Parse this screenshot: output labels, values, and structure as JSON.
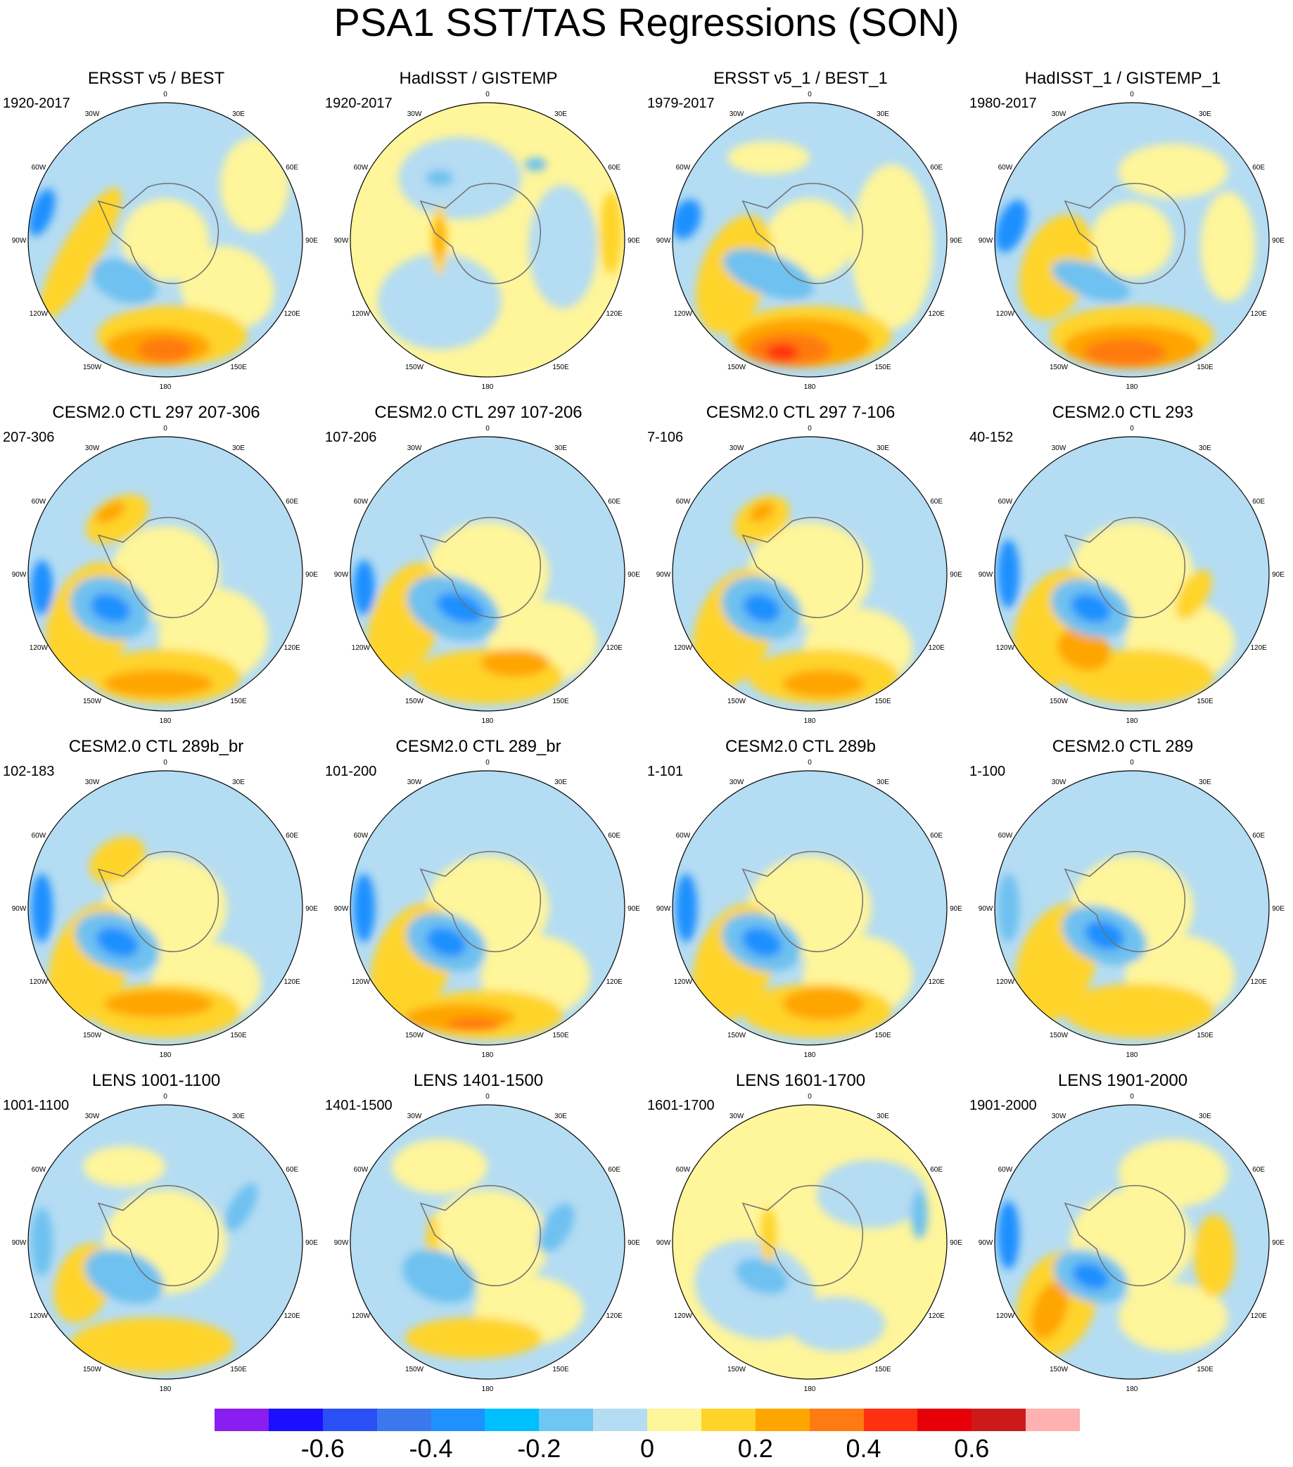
{
  "title": "PSA1 SST/TAS Regressions (SON)",
  "colors": {
    "blue_strong": "#1e90ff",
    "blue_mid": "#6ec1f0",
    "blue_light": "#b4dcf3",
    "yellow_light": "#fff59a",
    "yellow": "#ffd42a",
    "orange": "#ffa500",
    "orange_dark": "#ff7a10",
    "red": "#ff3010",
    "coast": "#707070"
  },
  "longitude_labels": [
    "0",
    "30E",
    "60E",
    "90E",
    "120E",
    "150E",
    "180",
    "150W",
    "120W",
    "90W",
    "60W",
    "30W"
  ],
  "panels": [
    {
      "title": "ERSST v5 / BEST",
      "period": "1920-2017",
      "base": "blue_light",
      "blobs": [
        [
          "yellow_light",
          0.0,
          0.0,
          0.32,
          0.3,
          0
        ],
        [
          "yellow_light",
          0.45,
          0.35,
          0.35,
          0.3,
          20
        ],
        [
          "yellow",
          -0.62,
          0.1,
          0.14,
          0.55,
          30
        ],
        [
          "yellow",
          0.05,
          0.7,
          0.55,
          0.22,
          0
        ],
        [
          "orange",
          -0.05,
          0.78,
          0.38,
          0.14,
          0
        ],
        [
          "orange_dark",
          0.0,
          0.8,
          0.2,
          0.09,
          0
        ],
        [
          "blue_mid",
          -0.3,
          0.3,
          0.25,
          0.15,
          20
        ],
        [
          "blue_strong",
          -0.9,
          -0.2,
          0.08,
          0.18,
          20
        ],
        [
          "yellow_light",
          0.65,
          -0.4,
          0.25,
          0.35,
          0
        ]
      ]
    },
    {
      "title": "HadISST / GISTEMP",
      "period": "1920-2017",
      "base": "yellow_light",
      "blobs": [
        [
          "blue_light",
          -0.35,
          0.45,
          0.45,
          0.35,
          0
        ],
        [
          "blue_light",
          -0.2,
          -0.45,
          0.45,
          0.3,
          0
        ],
        [
          "blue_light",
          0.55,
          0.05,
          0.25,
          0.45,
          0
        ],
        [
          "blue_mid",
          -0.35,
          -0.45,
          0.1,
          0.06,
          0
        ],
        [
          "blue_mid",
          0.35,
          -0.55,
          0.08,
          0.05,
          0
        ],
        [
          "yellow",
          0.9,
          -0.05,
          0.08,
          0.3,
          0
        ],
        [
          "yellow",
          -0.35,
          0.0,
          0.06,
          0.25,
          0
        ],
        [
          "orange",
          -0.35,
          0.0,
          0.03,
          0.15,
          0
        ]
      ]
    },
    {
      "title": "ERSST v5_1 / BEST_1",
      "period": "1979-2017",
      "base": "blue_light",
      "blobs": [
        [
          "yellow_light",
          0.0,
          0.0,
          0.32,
          0.3,
          0
        ],
        [
          "yellow_light",
          0.6,
          0.05,
          0.3,
          0.6,
          0
        ],
        [
          "yellow",
          -0.55,
          0.25,
          0.25,
          0.45,
          20
        ],
        [
          "yellow",
          0.0,
          0.7,
          0.6,
          0.22,
          0
        ],
        [
          "orange",
          -0.05,
          0.75,
          0.5,
          0.18,
          0
        ],
        [
          "orange_dark",
          -0.15,
          0.8,
          0.3,
          0.12,
          0
        ],
        [
          "red",
          -0.2,
          0.82,
          0.12,
          0.06,
          0
        ],
        [
          "blue_mid",
          -0.3,
          0.25,
          0.35,
          0.15,
          20
        ],
        [
          "blue_strong",
          -0.9,
          -0.15,
          0.1,
          0.15,
          20
        ],
        [
          "yellow_light",
          -0.3,
          -0.6,
          0.3,
          0.12,
          0
        ]
      ]
    },
    {
      "title": "HadISST_1 / GISTEMP_1",
      "period": "1980-2017",
      "base": "blue_light",
      "blobs": [
        [
          "yellow_light",
          0.0,
          0.0,
          0.3,
          0.28,
          0
        ],
        [
          "yellow_light",
          0.3,
          -0.5,
          0.4,
          0.2,
          0
        ],
        [
          "yellow_light",
          0.7,
          0.05,
          0.2,
          0.4,
          0
        ],
        [
          "yellow",
          -0.55,
          0.2,
          0.25,
          0.4,
          20
        ],
        [
          "yellow",
          0.0,
          0.7,
          0.6,
          0.22,
          0
        ],
        [
          "orange",
          0.0,
          0.78,
          0.5,
          0.16,
          0
        ],
        [
          "orange_dark",
          -0.05,
          0.82,
          0.3,
          0.1,
          0
        ],
        [
          "blue_mid",
          -0.3,
          0.3,
          0.3,
          0.12,
          20
        ],
        [
          "blue_strong",
          -0.88,
          -0.1,
          0.1,
          0.2,
          20
        ]
      ]
    },
    {
      "title": "CESM2.0 CTL 297 207-306",
      "period": "207-306",
      "base": "blue_light",
      "blobs": [
        [
          "yellow_light",
          0.0,
          0.0,
          0.4,
          0.35,
          0
        ],
        [
          "yellow_light",
          0.35,
          0.45,
          0.4,
          0.35,
          0
        ],
        [
          "yellow",
          -0.55,
          0.35,
          0.3,
          0.45,
          20
        ],
        [
          "yellow",
          0.0,
          0.75,
          0.55,
          0.2,
          0
        ],
        [
          "orange",
          -0.05,
          0.8,
          0.4,
          0.1,
          0
        ],
        [
          "yellow",
          -0.35,
          -0.4,
          0.25,
          0.15,
          -30
        ],
        [
          "orange",
          -0.4,
          -0.45,
          0.12,
          0.06,
          -30
        ],
        [
          "blue_mid",
          -0.4,
          0.25,
          0.3,
          0.22,
          20
        ],
        [
          "blue_strong",
          -0.4,
          0.25,
          0.15,
          0.1,
          20
        ],
        [
          "blue_strong",
          -0.9,
          0.1,
          0.08,
          0.2,
          0
        ]
      ]
    },
    {
      "title": "CESM2.0 CTL 297 107-206",
      "period": "107-206",
      "base": "blue_light",
      "blobs": [
        [
          "yellow_light",
          0.0,
          0.0,
          0.45,
          0.38,
          0
        ],
        [
          "yellow_light",
          0.4,
          0.5,
          0.4,
          0.3,
          0
        ],
        [
          "yellow",
          -0.6,
          0.35,
          0.25,
          0.45,
          20
        ],
        [
          "yellow",
          0.0,
          0.75,
          0.55,
          0.2,
          0
        ],
        [
          "orange",
          0.2,
          0.65,
          0.25,
          0.1,
          0
        ],
        [
          "blue_mid",
          -0.25,
          0.25,
          0.35,
          0.22,
          20
        ],
        [
          "blue_strong",
          -0.2,
          0.25,
          0.18,
          0.1,
          20
        ],
        [
          "blue_strong",
          -0.9,
          0.1,
          0.08,
          0.2,
          0
        ]
      ]
    },
    {
      "title": "CESM2.0 CTL 297 7-106",
      "period": "7-106",
      "base": "blue_light",
      "blobs": [
        [
          "yellow_light",
          0.0,
          0.0,
          0.45,
          0.38,
          0
        ],
        [
          "yellow_light",
          0.35,
          0.55,
          0.4,
          0.3,
          0
        ],
        [
          "yellow",
          -0.55,
          0.4,
          0.28,
          0.45,
          20
        ],
        [
          "yellow",
          0.1,
          0.75,
          0.55,
          0.2,
          0
        ],
        [
          "orange",
          0.1,
          0.8,
          0.3,
          0.1,
          0
        ],
        [
          "yellow",
          -0.35,
          -0.4,
          0.22,
          0.15,
          -30
        ],
        [
          "orange",
          -0.35,
          -0.45,
          0.1,
          0.06,
          -30
        ],
        [
          "blue_mid",
          -0.35,
          0.25,
          0.3,
          0.22,
          20
        ],
        [
          "blue_strong",
          -0.35,
          0.25,
          0.14,
          0.1,
          20
        ]
      ]
    },
    {
      "title": "CESM2.0 CTL 293",
      "period": "40-152",
      "base": "blue_light",
      "blobs": [
        [
          "yellow_light",
          0.0,
          0.0,
          0.45,
          0.38,
          0
        ],
        [
          "yellow_light",
          0.35,
          0.5,
          0.4,
          0.3,
          0
        ],
        [
          "yellow",
          -0.55,
          0.4,
          0.3,
          0.45,
          20
        ],
        [
          "yellow",
          0.05,
          0.75,
          0.55,
          0.2,
          0
        ],
        [
          "orange",
          -0.35,
          0.55,
          0.2,
          0.15,
          20
        ],
        [
          "yellow",
          0.45,
          0.15,
          0.1,
          0.2,
          30
        ],
        [
          "blue_mid",
          -0.3,
          0.25,
          0.3,
          0.2,
          20
        ],
        [
          "blue_strong",
          -0.3,
          0.25,
          0.15,
          0.1,
          20
        ],
        [
          "blue_strong",
          -0.9,
          0.0,
          0.08,
          0.25,
          0
        ]
      ]
    },
    {
      "title": "CESM2.0 CTL 289b_br",
      "period": "102-183",
      "base": "blue_light",
      "blobs": [
        [
          "yellow_light",
          0.0,
          0.0,
          0.45,
          0.38,
          0
        ],
        [
          "yellow_light",
          0.3,
          0.55,
          0.4,
          0.3,
          0
        ],
        [
          "yellow",
          -0.55,
          0.4,
          0.28,
          0.45,
          20
        ],
        [
          "yellow",
          0.0,
          0.75,
          0.55,
          0.2,
          0
        ],
        [
          "orange",
          -0.05,
          0.7,
          0.4,
          0.1,
          0
        ],
        [
          "yellow",
          -0.35,
          -0.35,
          0.22,
          0.15,
          -30
        ],
        [
          "blue_mid",
          -0.35,
          0.25,
          0.32,
          0.2,
          20
        ],
        [
          "blue_strong",
          -0.35,
          0.25,
          0.16,
          0.1,
          20
        ],
        [
          "blue_strong",
          -0.9,
          0.0,
          0.08,
          0.25,
          0
        ]
      ]
    },
    {
      "title": "CESM2.0 CTL 289_br",
      "period": "101-200",
      "base": "blue_light",
      "blobs": [
        [
          "yellow_light",
          0.0,
          0.0,
          0.45,
          0.38,
          0
        ],
        [
          "yellow_light",
          0.35,
          0.5,
          0.4,
          0.3,
          0
        ],
        [
          "yellow",
          -0.55,
          0.4,
          0.28,
          0.45,
          20
        ],
        [
          "yellow",
          0.0,
          0.78,
          0.55,
          0.18,
          0
        ],
        [
          "orange",
          -0.2,
          0.8,
          0.4,
          0.1,
          0
        ],
        [
          "orange_dark",
          -0.1,
          0.85,
          0.2,
          0.05,
          0
        ],
        [
          "blue_mid",
          -0.3,
          0.25,
          0.3,
          0.2,
          20
        ],
        [
          "blue_strong",
          -0.3,
          0.25,
          0.15,
          0.1,
          20
        ],
        [
          "blue_strong",
          -0.9,
          0.0,
          0.08,
          0.25,
          0
        ]
      ]
    },
    {
      "title": "CESM2.0 CTL 289b",
      "period": "1-101",
      "base": "blue_light",
      "blobs": [
        [
          "yellow_light",
          0.0,
          0.0,
          0.45,
          0.38,
          0
        ],
        [
          "yellow_light",
          0.35,
          0.5,
          0.4,
          0.3,
          0
        ],
        [
          "yellow",
          -0.55,
          0.4,
          0.28,
          0.45,
          20
        ],
        [
          "yellow",
          0.05,
          0.75,
          0.55,
          0.2,
          0
        ],
        [
          "orange",
          0.1,
          0.7,
          0.3,
          0.12,
          0
        ],
        [
          "blue_mid",
          -0.35,
          0.25,
          0.3,
          0.2,
          20
        ],
        [
          "blue_strong",
          -0.35,
          0.25,
          0.15,
          0.1,
          20
        ],
        [
          "blue_strong",
          -0.9,
          0.0,
          0.08,
          0.25,
          0
        ]
      ]
    },
    {
      "title": "CESM2.0 CTL 289",
      "period": "1-100",
      "base": "blue_light",
      "blobs": [
        [
          "yellow_light",
          0.0,
          0.0,
          0.45,
          0.38,
          0
        ],
        [
          "yellow_light",
          0.35,
          0.5,
          0.4,
          0.3,
          0
        ],
        [
          "yellow",
          -0.55,
          0.4,
          0.28,
          0.45,
          20
        ],
        [
          "yellow",
          0.05,
          0.75,
          0.55,
          0.2,
          0
        ],
        [
          "blue_mid",
          -0.2,
          0.2,
          0.32,
          0.2,
          20
        ],
        [
          "blue_strong",
          -0.2,
          0.2,
          0.15,
          0.1,
          20
        ],
        [
          "blue_mid",
          -0.9,
          0.0,
          0.08,
          0.25,
          0
        ]
      ]
    },
    {
      "title": "LENS 1001-1100",
      "period": "1001-1100",
      "base": "blue_light",
      "blobs": [
        [
          "yellow_light",
          0.0,
          0.0,
          0.45,
          0.38,
          0
        ],
        [
          "yellow_light",
          -0.3,
          -0.55,
          0.3,
          0.15,
          0
        ],
        [
          "yellow",
          -0.1,
          0.75,
          0.6,
          0.2,
          0
        ],
        [
          "yellow",
          -0.6,
          0.3,
          0.2,
          0.3,
          20
        ],
        [
          "blue_mid",
          -0.3,
          0.25,
          0.3,
          0.18,
          20
        ],
        [
          "blue_mid",
          -0.9,
          0.0,
          0.08,
          0.25,
          0
        ],
        [
          "blue_mid",
          0.55,
          -0.25,
          0.08,
          0.2,
          30
        ]
      ]
    },
    {
      "title": "LENS 1401-1500",
      "period": "1401-1500",
      "base": "blue_light",
      "blobs": [
        [
          "yellow_light",
          0.0,
          0.0,
          0.45,
          0.38,
          0
        ],
        [
          "yellow_light",
          0.3,
          0.5,
          0.4,
          0.25,
          0
        ],
        [
          "yellow_light",
          -0.35,
          -0.55,
          0.35,
          0.2,
          0
        ],
        [
          "yellow",
          -0.1,
          0.7,
          0.5,
          0.15,
          0
        ],
        [
          "yellow",
          -0.4,
          0.05,
          0.05,
          0.25,
          0
        ],
        [
          "blue_mid",
          -0.35,
          0.25,
          0.28,
          0.18,
          20
        ],
        [
          "blue_mid",
          0.5,
          -0.1,
          0.1,
          0.2,
          30
        ]
      ]
    },
    {
      "title": "LENS 1601-1700",
      "period": "1601-1700",
      "base": "yellow_light",
      "blobs": [
        [
          "blue_light",
          -0.4,
          0.35,
          0.45,
          0.35,
          20
        ],
        [
          "blue_light",
          0.45,
          -0.35,
          0.4,
          0.25,
          0
        ],
        [
          "blue_light",
          0.2,
          0.6,
          0.35,
          0.2,
          0
        ],
        [
          "blue_mid",
          -0.35,
          0.25,
          0.2,
          0.12,
          20
        ],
        [
          "blue_mid",
          0.8,
          -0.2,
          0.06,
          0.18,
          0
        ],
        [
          "yellow",
          -0.3,
          -0.05,
          0.06,
          0.2,
          0
        ]
      ]
    },
    {
      "title": "LENS 1901-2000",
      "period": "1901-2000",
      "base": "blue_light",
      "blobs": [
        [
          "yellow_light",
          0.0,
          0.0,
          0.45,
          0.38,
          0
        ],
        [
          "yellow_light",
          0.3,
          -0.5,
          0.4,
          0.25,
          0
        ],
        [
          "yellow_light",
          0.3,
          0.55,
          0.4,
          0.25,
          0
        ],
        [
          "yellow",
          -0.55,
          0.45,
          0.28,
          0.4,
          20
        ],
        [
          "orange",
          -0.6,
          0.5,
          0.12,
          0.22,
          20
        ],
        [
          "yellow",
          0.6,
          0.1,
          0.15,
          0.3,
          0
        ],
        [
          "blue_mid",
          -0.3,
          0.25,
          0.28,
          0.18,
          20
        ],
        [
          "blue_strong",
          -0.3,
          0.25,
          0.14,
          0.09,
          20
        ],
        [
          "blue_strong",
          -0.9,
          -0.05,
          0.08,
          0.25,
          0
        ]
      ]
    }
  ],
  "colorbar": {
    "colors": [
      "#8a1ef0",
      "#1a10ff",
      "#2a50f5",
      "#3a78ee",
      "#1e90ff",
      "#00bfff",
      "#6ec6f2",
      "#b4dcf3",
      "#fff59a",
      "#ffd42a",
      "#ffa500",
      "#ff7a10",
      "#ff3010",
      "#e80008",
      "#cc1a1a",
      "#ffb0b0"
    ],
    "labels": [
      "-0.6",
      "-0.4",
      "-0.2",
      "0",
      "0.2",
      "0.4",
      "0.6"
    ]
  }
}
